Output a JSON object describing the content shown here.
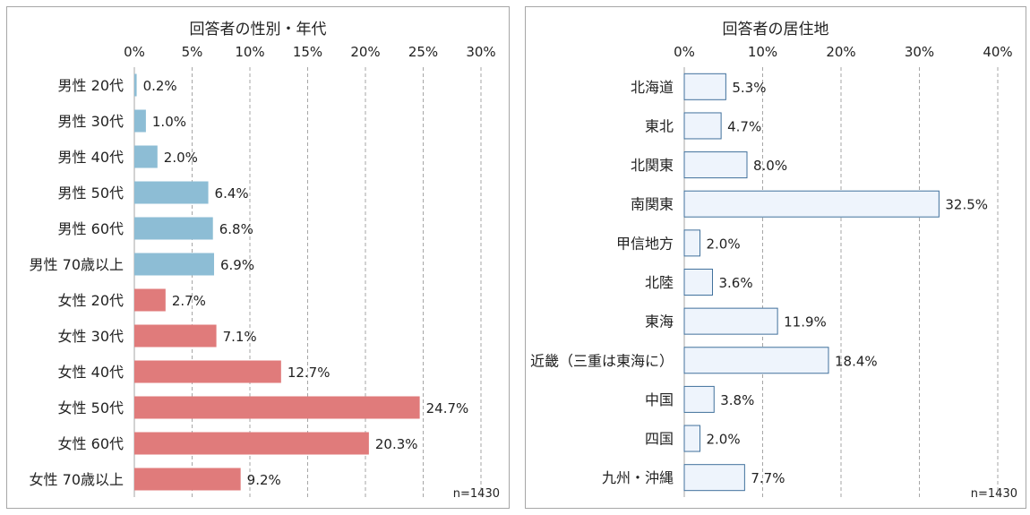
{
  "chart_data": [
    {
      "type": "bar",
      "orientation": "horizontal",
      "title": "回答者の性別・年代",
      "note": "n=1430",
      "xlim": [
        0,
        30
      ],
      "xticks": [
        "0%",
        "5%",
        "10%",
        "15%",
        "20%",
        "25%",
        "30%"
      ],
      "tick_values": [
        0,
        5,
        10,
        15,
        20,
        25,
        30
      ],
      "grid": true,
      "categories": [
        "男性 20代",
        "男性 30代",
        "男性 40代",
        "男性 50代",
        "男性 60代",
        "男性 70歳以上",
        "女性 20代",
        "女性 30代",
        "女性 40代",
        "女性 50代",
        "女性 60代",
        "女性 70歳以上"
      ],
      "values": [
        0.2,
        1.0,
        2.0,
        6.4,
        6.8,
        6.9,
        2.7,
        7.1,
        12.7,
        24.7,
        20.3,
        9.2
      ],
      "value_labels": [
        "0.2%",
        "1.0%",
        "2.0%",
        "6.4%",
        "6.8%",
        "6.9%",
        "2.7%",
        "7.1%",
        "12.7%",
        "24.7%",
        "20.3%",
        "9.2%"
      ],
      "colors": [
        "#8dbdd5",
        "#8dbdd5",
        "#8dbdd5",
        "#8dbdd5",
        "#8dbdd5",
        "#8dbdd5",
        "#e07b7b",
        "#e07b7b",
        "#e07b7b",
        "#e07b7b",
        "#e07b7b",
        "#e07b7b"
      ]
    },
    {
      "type": "bar",
      "orientation": "horizontal",
      "title": "回答者の居住地",
      "note": "n=1430",
      "xlim": [
        0,
        40
      ],
      "xticks": [
        "0%",
        "10%",
        "20%",
        "30%",
        "40%"
      ],
      "tick_values": [
        0,
        10,
        20,
        30,
        40
      ],
      "grid": true,
      "categories": [
        "北海道",
        "東北",
        "北関東",
        "南関東",
        "甲信地方",
        "北陸",
        "東海",
        "近畿（三重は東海に）",
        "中国",
        "四国",
        "九州・沖縄"
      ],
      "values": [
        5.3,
        4.7,
        8.0,
        32.5,
        2.0,
        3.6,
        11.9,
        18.4,
        3.8,
        2.0,
        7.7
      ],
      "value_labels": [
        "5.3%",
        "4.7%",
        "8.0%",
        "32.5%",
        "2.0%",
        "3.6%",
        "11.9%",
        "18.4%",
        "3.8%",
        "2.0%",
        "7.7%"
      ],
      "bar_fill": "#eef4fc",
      "bar_stroke": "#41719c"
    }
  ]
}
